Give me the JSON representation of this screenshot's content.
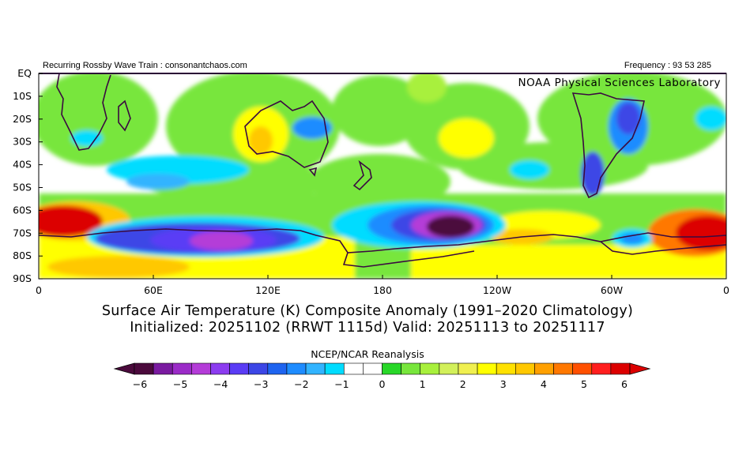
{
  "header": {
    "left_text": "Recurring Rossby Wave Train : consonantchaos.com",
    "right_text": "Frequency : 93 53 285",
    "lab_label": "NOAA Physical Sciences Laboratory"
  },
  "map": {
    "lat_labels": [
      "EQ",
      "10S",
      "20S",
      "30S",
      "40S",
      "50S",
      "60S",
      "70S",
      "80S",
      "90S"
    ],
    "lon_labels": [
      "0",
      "60E",
      "120E",
      "180",
      "120W",
      "60W",
      "0"
    ],
    "regions": [
      {
        "name": "southern-ocean-cold-pacific",
        "anomaly": -6
      },
      {
        "name": "antarctic-east-cold",
        "anomaly": -4
      },
      {
        "name": "weddell-atlantic-warm",
        "anomaly": 6
      },
      {
        "name": "central-australia-warm",
        "anomaly": 3
      },
      {
        "name": "east-australia-cold",
        "anomaly": -2
      },
      {
        "name": "south-america-cold",
        "anomaly": -2
      },
      {
        "name": "bellingshausen-cold",
        "anomaly": -2
      }
    ]
  },
  "caption": {
    "line1": "Surface Air Temperature (K) Composite Anomaly (1991–2020 Climatology)",
    "line2": "Initialized: 20251102 (RRWT 1115d) Valid: 20251113 to 20251117"
  },
  "colorbar": {
    "title": "NCEP/NCAR Reanalysis",
    "ticks": [
      "−6",
      "−5",
      "−4",
      "−3",
      "−2",
      "−1",
      "0",
      "1",
      "2",
      "3",
      "4",
      "5",
      "6"
    ],
    "colors": [
      "#4b0a3c",
      "#7a1aa0",
      "#9b2bc8",
      "#b43cd8",
      "#8c3cf0",
      "#5a3cf5",
      "#3c46e6",
      "#1e64f0",
      "#1e8cff",
      "#32b4ff",
      "#00dcff",
      "#ffffff",
      "#ffffff",
      "#28d728",
      "#78e63c",
      "#a8f03c",
      "#d2f05a",
      "#f0f050",
      "#ffff00",
      "#ffe100",
      "#ffc800",
      "#ffa000",
      "#ff7800",
      "#ff5000",
      "#ff1e1e",
      "#dc0000"
    ]
  },
  "legend_colors": {
    "strong_cold": "#4b0a3c",
    "cold": "#8c3cf0",
    "cool": "#00dcff",
    "warm": "#78e63c",
    "hot": "#dc0000"
  }
}
